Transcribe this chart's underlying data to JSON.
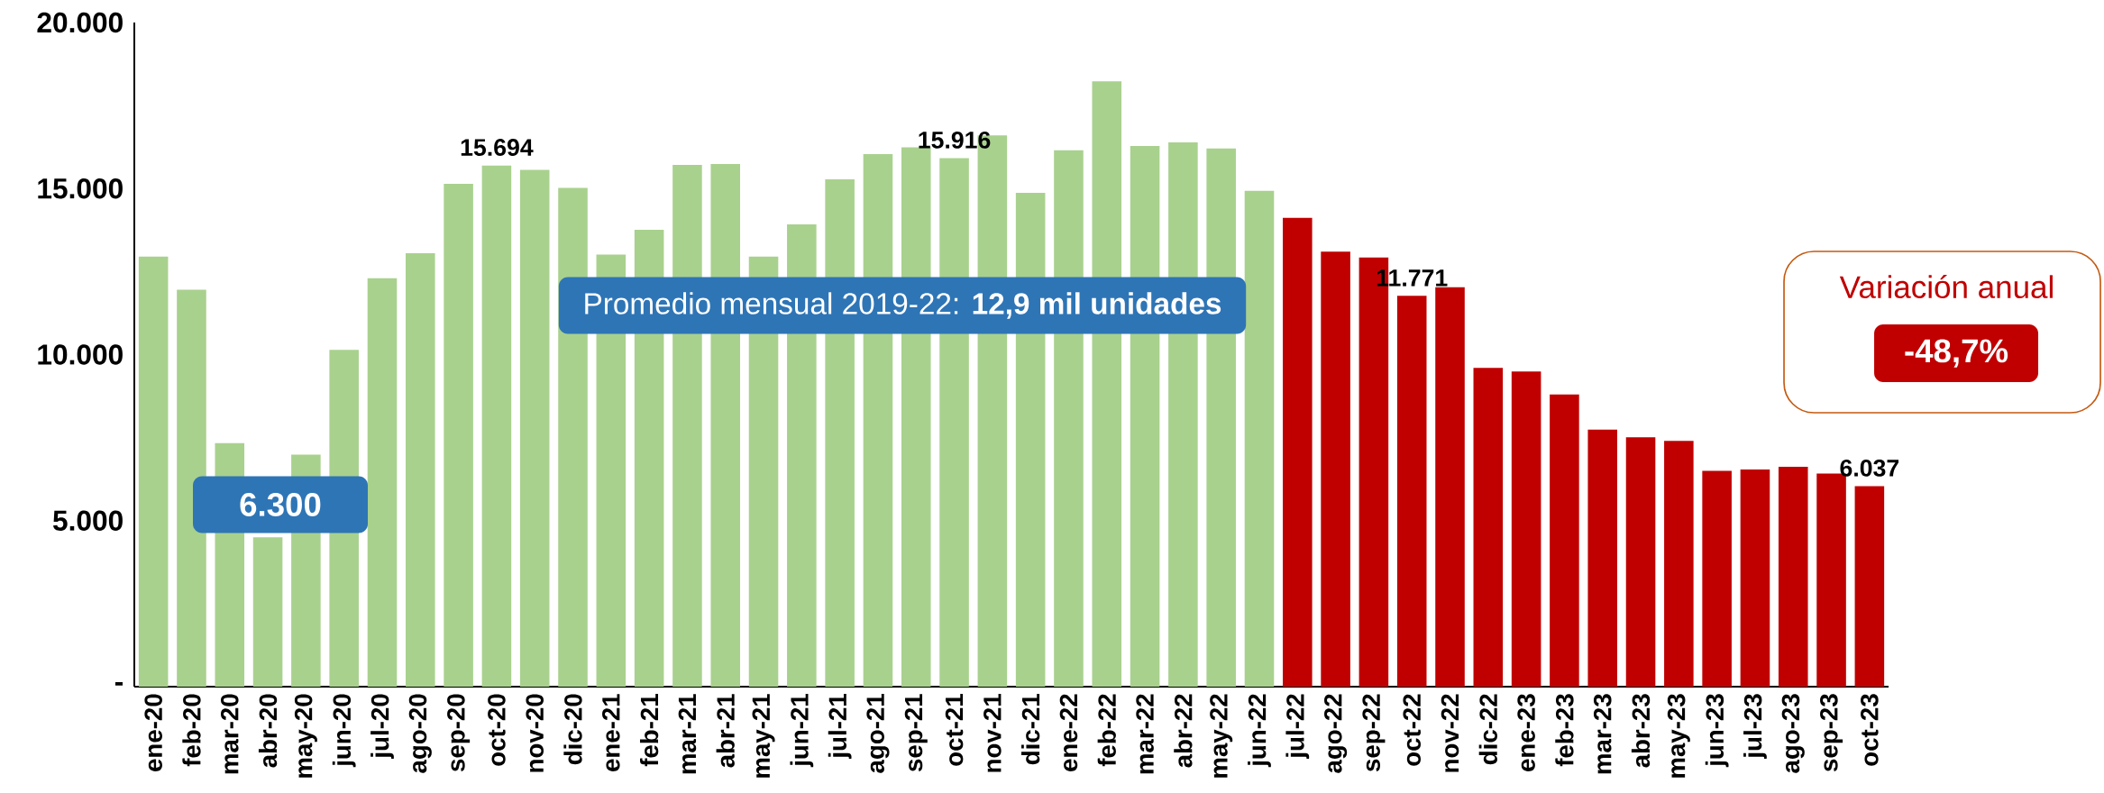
{
  "chart_data": {
    "type": "bar",
    "categories": [
      "ene-20",
      "feb-20",
      "mar-20",
      "abr-20",
      "may-20",
      "jun-20",
      "jul-20",
      "ago-20",
      "sep-20",
      "oct-20",
      "nov-20",
      "dic-20",
      "ene-21",
      "feb-21",
      "mar-21",
      "abr-21",
      "may-21",
      "jun-21",
      "jul-21",
      "ago-21",
      "sep-21",
      "oct-21",
      "nov-21",
      "dic-21",
      "ene-22",
      "feb-22",
      "mar-22",
      "abr-22",
      "may-22",
      "jun-22",
      "jul-22",
      "ago-22",
      "sep-22",
      "oct-22",
      "nov-22",
      "dic-22",
      "ene-23",
      "feb-23",
      "mar-23",
      "abr-23",
      "may-23",
      "jun-23",
      "jul-23",
      "ago-23",
      "sep-23",
      "oct-23"
    ],
    "values": [
      12950,
      11950,
      7330,
      4500,
      6990,
      10140,
      12300,
      13050,
      15140,
      15694,
      15560,
      15020,
      13010,
      13760,
      15710,
      15740,
      12950,
      13920,
      15280,
      16040,
      16240,
      15916,
      16600,
      14870,
      16150,
      18230,
      16280,
      16390,
      16210,
      14930,
      14120,
      13100,
      12920,
      11771,
      12030,
      9600,
      9490,
      8800,
      7740,
      7510,
      7400,
      6500,
      6540,
      6620,
      6420,
      6037
    ],
    "colors": [
      "#a9d18e",
      "#a9d18e",
      "#a9d18e",
      "#a9d18e",
      "#a9d18e",
      "#a9d18e",
      "#a9d18e",
      "#a9d18e",
      "#a9d18e",
      "#a9d18e",
      "#a9d18e",
      "#a9d18e",
      "#a9d18e",
      "#a9d18e",
      "#a9d18e",
      "#a9d18e",
      "#a9d18e",
      "#a9d18e",
      "#a9d18e",
      "#a9d18e",
      "#a9d18e",
      "#a9d18e",
      "#a9d18e",
      "#a9d18e",
      "#a9d18e",
      "#a9d18e",
      "#a9d18e",
      "#a9d18e",
      "#a9d18e",
      "#a9d18e",
      "#c00000",
      "#c00000",
      "#c00000",
      "#c00000",
      "#c00000",
      "#c00000",
      "#c00000",
      "#c00000",
      "#c00000",
      "#c00000",
      "#c00000",
      "#c00000",
      "#c00000",
      "#c00000",
      "#c00000",
      "#c00000"
    ],
    "value_labels": [
      null,
      null,
      null,
      null,
      null,
      null,
      null,
      null,
      null,
      "15.694",
      null,
      null,
      null,
      null,
      null,
      null,
      null,
      null,
      null,
      null,
      null,
      "15.916",
      null,
      null,
      null,
      null,
      null,
      null,
      null,
      null,
      null,
      null,
      null,
      "11.771",
      null,
      null,
      null,
      null,
      null,
      null,
      null,
      null,
      null,
      null,
      null,
      "6.037"
    ],
    "ylim": [
      0,
      20000
    ],
    "yticks": [
      {
        "value": 0,
        "label": "-"
      },
      {
        "value": 5000,
        "label": "5.000"
      },
      {
        "value": 10000,
        "label": "10.000"
      },
      {
        "value": 15000,
        "label": "15.000"
      },
      {
        "value": 20000,
        "label": "20.000"
      }
    ],
    "annotations": [
      "6.300",
      "Promedio mensual 2019-22: **12,9 mil unidades**",
      "Variación anual",
      "-48,7%"
    ],
    "grid": false
  }
}
